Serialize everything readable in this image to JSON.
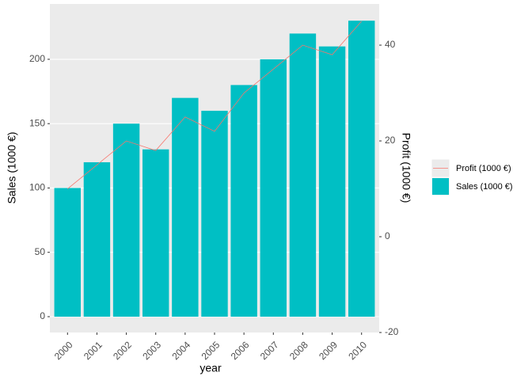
{
  "chart_data": {
    "type": "bar_line",
    "x_label": "year",
    "y_label": "Sales (1000 €)",
    "y2_label": "Profit (1000 €)",
    "categories": [
      "2000",
      "2001",
      "2002",
      "2003",
      "2004",
      "2005",
      "2006",
      "2007",
      "2008",
      "2009",
      "2010"
    ],
    "series": [
      {
        "name": "Sales (1000 €)",
        "type": "bar",
        "color": "#00BFC4",
        "values": [
          100,
          120,
          150,
          130,
          170,
          160,
          180,
          200,
          220,
          210,
          230
        ]
      },
      {
        "name": "Profit (1000 €)",
        "type": "line",
        "axis": "y2",
        "color": "#F8766D",
        "values": [
          10,
          15,
          20,
          18,
          25,
          22,
          30,
          35,
          40,
          38,
          45
        ]
      }
    ],
    "ylim": [
      -12.3,
      243
    ],
    "yticks": [
      0,
      50,
      100,
      150,
      200
    ],
    "y2lim": [
      -20,
      48.6
    ],
    "y2ticks": [
      -20,
      0,
      20,
      40
    ],
    "grid": true
  }
}
